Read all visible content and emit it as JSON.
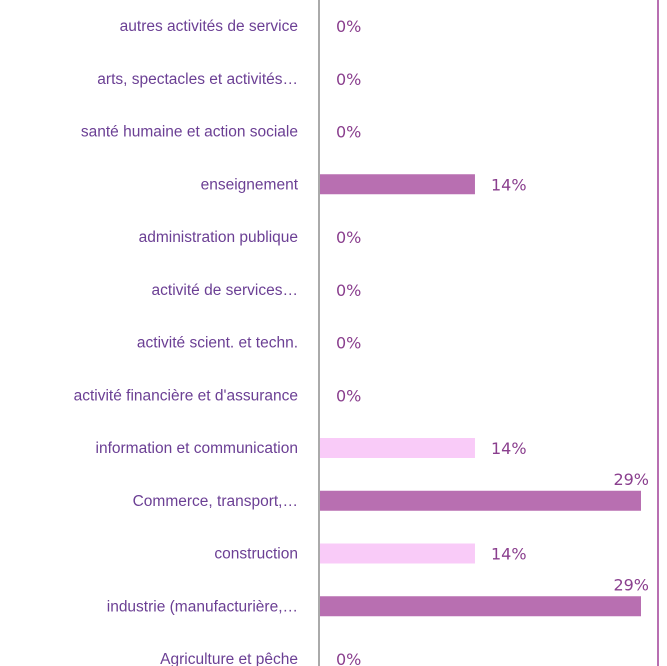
{
  "chart_data": {
    "type": "bar",
    "orientation": "horizontal",
    "categories": [
      "autres activités de service",
      "arts, spectacles et activités…",
      "santé humaine et action sociale",
      "enseignement",
      "administration publique",
      "activité de services…",
      "activité scient. et techn.",
      "activité financière et d'assurance",
      "information et communication",
      "Commerce, transport,…",
      "construction",
      "industrie (manufacturière,…",
      "Agriculture et pêche"
    ],
    "values": [
      0,
      0,
      0,
      14,
      0,
      0,
      0,
      0,
      14,
      29,
      14,
      29,
      0
    ],
    "value_labels": [
      "0%",
      "0%",
      "0%",
      "14%",
      "0%",
      "0%",
      "0%",
      "0%",
      "14%",
      "29%",
      "14%",
      "29%",
      "0%"
    ],
    "bar_colors": [
      "#b86fb1",
      "#b86fb1",
      "#b86fb1",
      "#b86fb1",
      "#b86fb1",
      "#b86fb1",
      "#b86fb1",
      "#b86fb1",
      "#f9cbf8",
      "#b86fb1",
      "#f9cbf8",
      "#b86fb1",
      "#b86fb1"
    ],
    "xlim": [
      0,
      29
    ],
    "title": "",
    "xlabel": "",
    "ylabel": "",
    "grid": false,
    "legend": "none",
    "colors": {
      "category_text": "#6b3f94",
      "value_text": "#8a3f8e",
      "axis": "#555555",
      "frame": "#b86fb1"
    }
  }
}
